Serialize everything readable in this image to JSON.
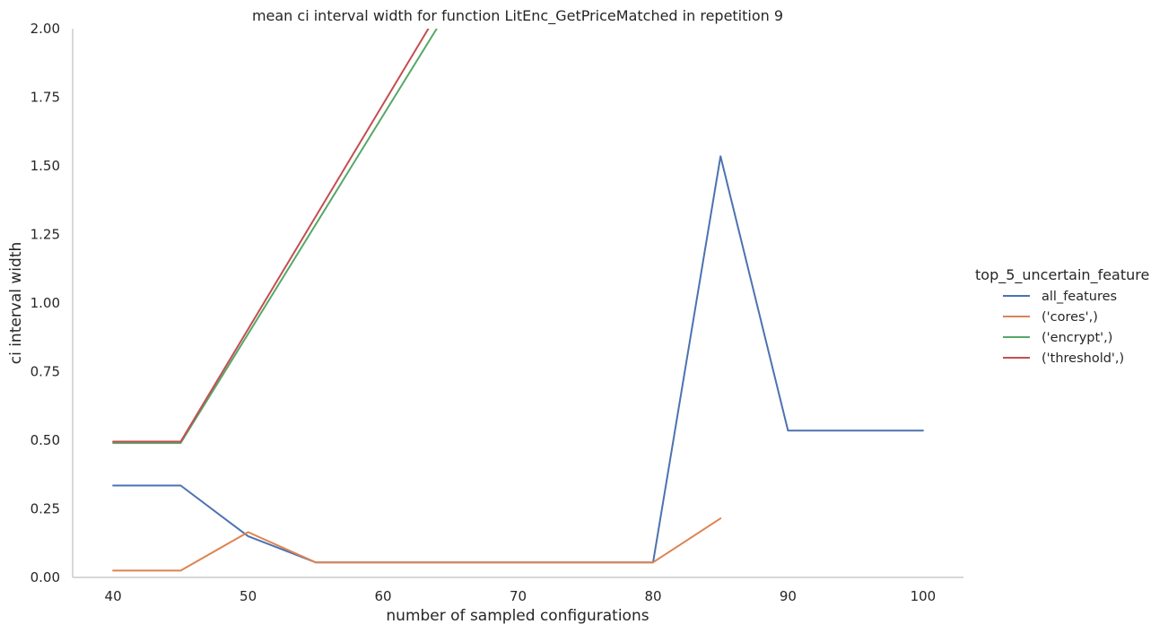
{
  "chart_data": {
    "type": "line",
    "title": "mean ci interval width for function LitEnc_GetPriceMatched in repetition 9",
    "xlabel": "number of sampled configurations",
    "ylabel": "ci interval width",
    "xlim": [
      37,
      103
    ],
    "ylim": [
      0,
      2.0
    ],
    "xticks": [
      40,
      50,
      60,
      70,
      80,
      90,
      100
    ],
    "xtick_labels": [
      "40",
      "50",
      "60",
      "70",
      "80",
      "90",
      "100"
    ],
    "yticks": [
      0,
      0.25,
      0.5,
      0.75,
      1.0,
      1.25,
      1.5,
      1.75,
      2.0
    ],
    "ytick_labels": [
      "0.00",
      "0.25",
      "0.50",
      "0.75",
      "1.00",
      "1.25",
      "1.50",
      "1.75",
      "2.00"
    ],
    "grid": false,
    "legend": {
      "title": "top_5_uncertain_feature",
      "placement": "right"
    },
    "series": [
      {
        "name": "all_features",
        "color": "#4c72b0",
        "x": [
          40,
          45,
          50,
          55,
          60,
          65,
          70,
          75,
          80,
          85,
          90,
          95,
          100
        ],
        "y": [
          0.335,
          0.335,
          0.15,
          0.055,
          0.055,
          0.055,
          0.055,
          0.055,
          0.055,
          1.535,
          0.535,
          0.535,
          0.535
        ]
      },
      {
        "name": "('cores',)",
        "color": "#dd8452",
        "x": [
          40,
          45,
          50,
          55,
          60,
          65,
          70,
          75,
          80,
          85
        ],
        "y": [
          0.025,
          0.025,
          0.165,
          0.055,
          0.055,
          0.055,
          0.055,
          0.055,
          0.055,
          0.215
        ]
      },
      {
        "name": "('encrypt',)",
        "color": "#55a868",
        "x": [
          40,
          45,
          70
        ],
        "y": [
          0.49,
          0.49,
          2.48
        ]
      },
      {
        "name": "('threshold',)",
        "color": "#c44e52",
        "x": [
          40,
          45,
          70
        ],
        "y": [
          0.495,
          0.495,
          2.545
        ]
      }
    ]
  }
}
